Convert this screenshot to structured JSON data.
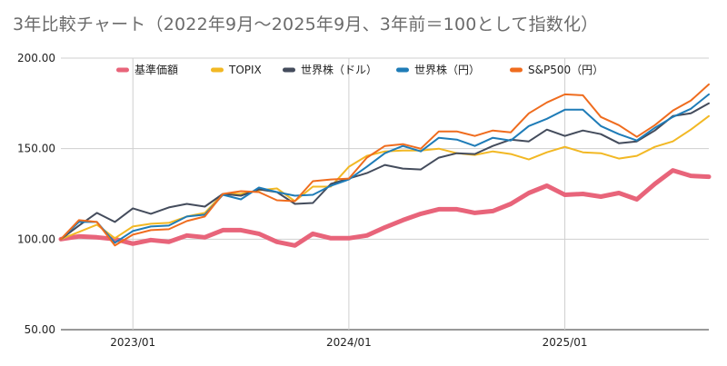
{
  "chart_data": {
    "type": "line",
    "title": "3年比較チャート（2022年9月〜2025年9月、3年前＝100として指数化）",
    "x": [
      "2022/09",
      "2022/10",
      "2022/11",
      "2022/12",
      "2023/01",
      "2023/02",
      "2023/03",
      "2023/04",
      "2023/05",
      "2023/06",
      "2023/07",
      "2023/08",
      "2023/09",
      "2023/10",
      "2023/11",
      "2023/12",
      "2024/01",
      "2024/02",
      "2024/03",
      "2024/04",
      "2024/05",
      "2024/06",
      "2024/07",
      "2024/08",
      "2024/09",
      "2024/10",
      "2024/11",
      "2024/12",
      "2025/01",
      "2025/02",
      "2025/03",
      "2025/04",
      "2025/05",
      "2025/06",
      "2025/07",
      "2025/08",
      "2025/09"
    ],
    "x_tick_labels": [
      {
        "label": "2023/01",
        "at": "2023/01"
      },
      {
        "label": "2024/01",
        "at": "2024/01"
      },
      {
        "label": "2025/01",
        "at": "2025/01"
      }
    ],
    "y_ticks": [
      "50.00",
      "100.00",
      "150.00",
      "200.00"
    ],
    "ylim": [
      50,
      200
    ],
    "grid": true,
    "legend_position": "top",
    "series": [
      {
        "name": "基準価額",
        "color": "#e8647a",
        "width": 5,
        "values": [
          100.0,
          101.5,
          101.0,
          100.0,
          97.5,
          99.5,
          98.5,
          102.0,
          101.0,
          105.0,
          105.0,
          103.0,
          98.5,
          96.5,
          103.0,
          100.5,
          100.5,
          102.0,
          106.5,
          110.5,
          114.0,
          116.5,
          116.5,
          114.5,
          115.5,
          119.5,
          125.5,
          129.5,
          124.5,
          125.0,
          123.5,
          125.5,
          122.0,
          130.5,
          138.0,
          135.0,
          134.5
        ]
      },
      {
        "name": "TOPIX",
        "color": "#f2b824",
        "width": 2,
        "values": [
          100.0,
          104.0,
          108.0,
          100.5,
          107.0,
          108.5,
          109.0,
          112.5,
          114.5,
          125.0,
          125.0,
          127.0,
          128.0,
          121.0,
          129.0,
          129.0,
          140.0,
          146.0,
          148.5,
          149.0,
          149.0,
          150.0,
          147.5,
          146.5,
          148.5,
          147.0,
          144.0,
          148.0,
          151.0,
          148.0,
          147.5,
          144.5,
          146.0,
          151.0,
          154.0,
          160.5,
          168.0
        ]
      },
      {
        "name": "世界株（ドル）",
        "color": "#444c5c",
        "width": 2,
        "values": [
          100.0,
          107.5,
          114.5,
          109.5,
          117.0,
          114.0,
          117.5,
          119.5,
          118.0,
          125.0,
          124.0,
          127.5,
          126.0,
          119.5,
          120.0,
          130.5,
          133.5,
          136.5,
          141.0,
          139.0,
          138.5,
          145.0,
          147.5,
          147.0,
          151.5,
          155.0,
          154.0,
          160.5,
          157.0,
          160.0,
          158.0,
          153.0,
          154.0,
          160.0,
          168.0,
          169.5,
          175.0
        ]
      },
      {
        "name": "世界株（円）",
        "color": "#1f7cb7",
        "width": 2,
        "values": [
          100.0,
          109.5,
          109.5,
          98.0,
          104.5,
          107.0,
          107.5,
          112.5,
          113.5,
          124.5,
          122.0,
          128.5,
          126.0,
          124.0,
          124.5,
          129.5,
          133.0,
          140.0,
          147.5,
          151.5,
          148.5,
          156.0,
          155.0,
          151.5,
          156.0,
          154.5,
          162.5,
          166.5,
          171.5,
          171.5,
          162.5,
          158.0,
          154.5,
          161.5,
          167.5,
          172.0,
          180.0
        ]
      },
      {
        "name": "S&P500（円）",
        "color": "#ef6c1e",
        "width": 2,
        "values": [
          100.0,
          110.5,
          109.5,
          96.5,
          102.5,
          105.0,
          105.5,
          110.0,
          112.5,
          125.0,
          126.5,
          126.0,
          121.5,
          121.0,
          132.0,
          133.0,
          133.5,
          145.0,
          151.5,
          152.5,
          150.0,
          159.5,
          159.5,
          157.0,
          160.0,
          159.0,
          169.5,
          175.5,
          180.0,
          179.5,
          167.5,
          163.0,
          156.5,
          163.0,
          171.0,
          176.5,
          185.5
        ]
      }
    ]
  }
}
